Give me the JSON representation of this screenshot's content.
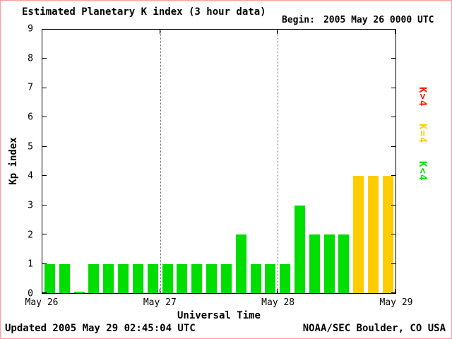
{
  "header": {
    "title": "Estimated Planetary K index (3 hour data)",
    "begin_label": "Begin:",
    "begin_value": "2005 May 26 0000 UTC"
  },
  "footer": {
    "updated": "Updated 2005 May 29 02:45:04 UTC",
    "source": "NOAA/SEC Boulder, CO USA"
  },
  "legend": {
    "position": "right",
    "items": [
      {
        "label": "K>4",
        "color": "#ff1500"
      },
      {
        "label": "K=4",
        "color": "#ffcc00"
      },
      {
        "label": "K<4",
        "color": "#00dd00"
      }
    ]
  },
  "chart_data": {
    "type": "bar",
    "title": "Estimated Planetary K index (3 hour data)",
    "xlabel": "Universal Time",
    "ylabel": "Kp index",
    "ylim": [
      0,
      9
    ],
    "y_ticks": [
      0,
      1,
      2,
      3,
      4,
      5,
      6,
      7,
      8,
      9
    ],
    "x_tick_labels": [
      "May 26",
      "May 27",
      "May 28",
      "May 29"
    ],
    "interval_hours": 3,
    "values": [
      1,
      1,
      0,
      1,
      1,
      1,
      1,
      1,
      1,
      1,
      1,
      1,
      1,
      2,
      1,
      1,
      1,
      3,
      2,
      2,
      2,
      4,
      4,
      4
    ],
    "colors": {
      "k_lt_4": "#00dd00",
      "k_eq_4": "#ffcc00",
      "k_gt_4": "#ff1500"
    },
    "grid": "dotted vertical lines at day boundaries",
    "legend_position": "right"
  }
}
